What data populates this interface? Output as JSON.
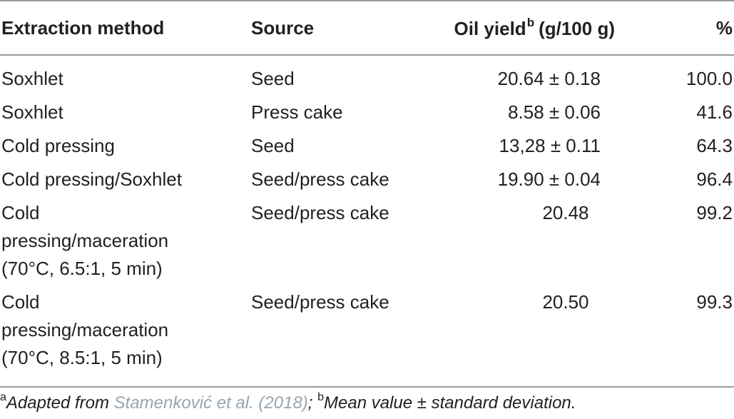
{
  "table": {
    "headers": {
      "method": "Extraction method",
      "source": "Source",
      "yield": "Oil yield",
      "yield_sup": "b",
      "yield_unit": "(g/100 g)",
      "percent": "%"
    },
    "rows": [
      {
        "method": [
          "Soxhlet"
        ],
        "source": "Seed",
        "yield": "20.64 ± 0.18",
        "percent": "100.0"
      },
      {
        "method": [
          "Soxhlet"
        ],
        "source": "Press cake",
        "yield": "8.58 ± 0.06",
        "percent": "41.6"
      },
      {
        "method": [
          "Cold pressing"
        ],
        "source": "Seed",
        "yield": "13,28 ± 0.11",
        "percent": "64.3"
      },
      {
        "method": [
          "Cold pressing/Soxhlet"
        ],
        "source": "Seed/press cake",
        "yield": "19.90 ± 0.04",
        "percent": "96.4"
      },
      {
        "method": [
          "Cold",
          "pressing/maceration",
          "(70°C, 6.5:1, 5 min)"
        ],
        "source": "Seed/press cake",
        "yield": "20.48",
        "percent": "99.2"
      },
      {
        "method": [
          "Cold",
          "pressing/maceration",
          "(70°C, 8.5:1, 5 min)"
        ],
        "source": "Seed/press cake",
        "yield": "20.50",
        "percent": "99.3"
      }
    ]
  },
  "footnote": {
    "a_mark": "a",
    "a_prefix": "Adapted from ",
    "a_link": "Stamenković et al. (2018)",
    "a_suffix": "; ",
    "b_mark": "b",
    "b_text": "Mean value ± standard deviation."
  }
}
